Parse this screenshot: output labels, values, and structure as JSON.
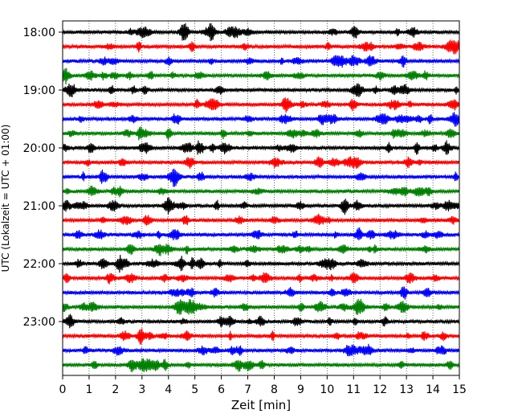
{
  "chart_data": {
    "type": "line",
    "xlabel": "Zeit  [min]",
    "ylabel": "UTC (Lokalzeit = UTC + 01:00)",
    "xlim": [
      0,
      15
    ],
    "x_ticks": [
      0,
      1,
      2,
      3,
      4,
      5,
      6,
      7,
      8,
      9,
      10,
      11,
      12,
      13,
      14,
      15
    ],
    "y_ticks": [
      "18:00",
      "19:00",
      "20:00",
      "21:00",
      "22:00",
      "23:00"
    ],
    "grid_x": true,
    "trace_interval_minutes": 15,
    "first_trace_time": "18:00",
    "trace_count": 24,
    "colors": [
      "#000000",
      "#ff0000",
      "#0000ff",
      "#008000"
    ],
    "traces": [
      {
        "start": "18:00",
        "color": "#000000"
      },
      {
        "start": "18:15",
        "color": "#ff0000"
      },
      {
        "start": "18:30",
        "color": "#0000ff"
      },
      {
        "start": "18:45",
        "color": "#008000"
      },
      {
        "start": "19:00",
        "color": "#000000"
      },
      {
        "start": "19:15",
        "color": "#ff0000"
      },
      {
        "start": "19:30",
        "color": "#0000ff"
      },
      {
        "start": "19:45",
        "color": "#008000"
      },
      {
        "start": "20:00",
        "color": "#000000"
      },
      {
        "start": "20:15",
        "color": "#ff0000"
      },
      {
        "start": "20:30",
        "color": "#0000ff"
      },
      {
        "start": "20:45",
        "color": "#008000"
      },
      {
        "start": "21:00",
        "color": "#000000"
      },
      {
        "start": "21:15",
        "color": "#ff0000"
      },
      {
        "start": "21:30",
        "color": "#0000ff"
      },
      {
        "start": "21:45",
        "color": "#008000"
      },
      {
        "start": "22:00",
        "color": "#000000"
      },
      {
        "start": "22:15",
        "color": "#ff0000"
      },
      {
        "start": "22:30",
        "color": "#0000ff"
      },
      {
        "start": "22:45",
        "color": "#008000"
      },
      {
        "start": "23:00",
        "color": "#000000"
      },
      {
        "start": "23:15",
        "color": "#ff0000"
      },
      {
        "start": "23:30",
        "color": "#0000ff"
      },
      {
        "start": "23:45",
        "color": "#008000"
      }
    ]
  }
}
